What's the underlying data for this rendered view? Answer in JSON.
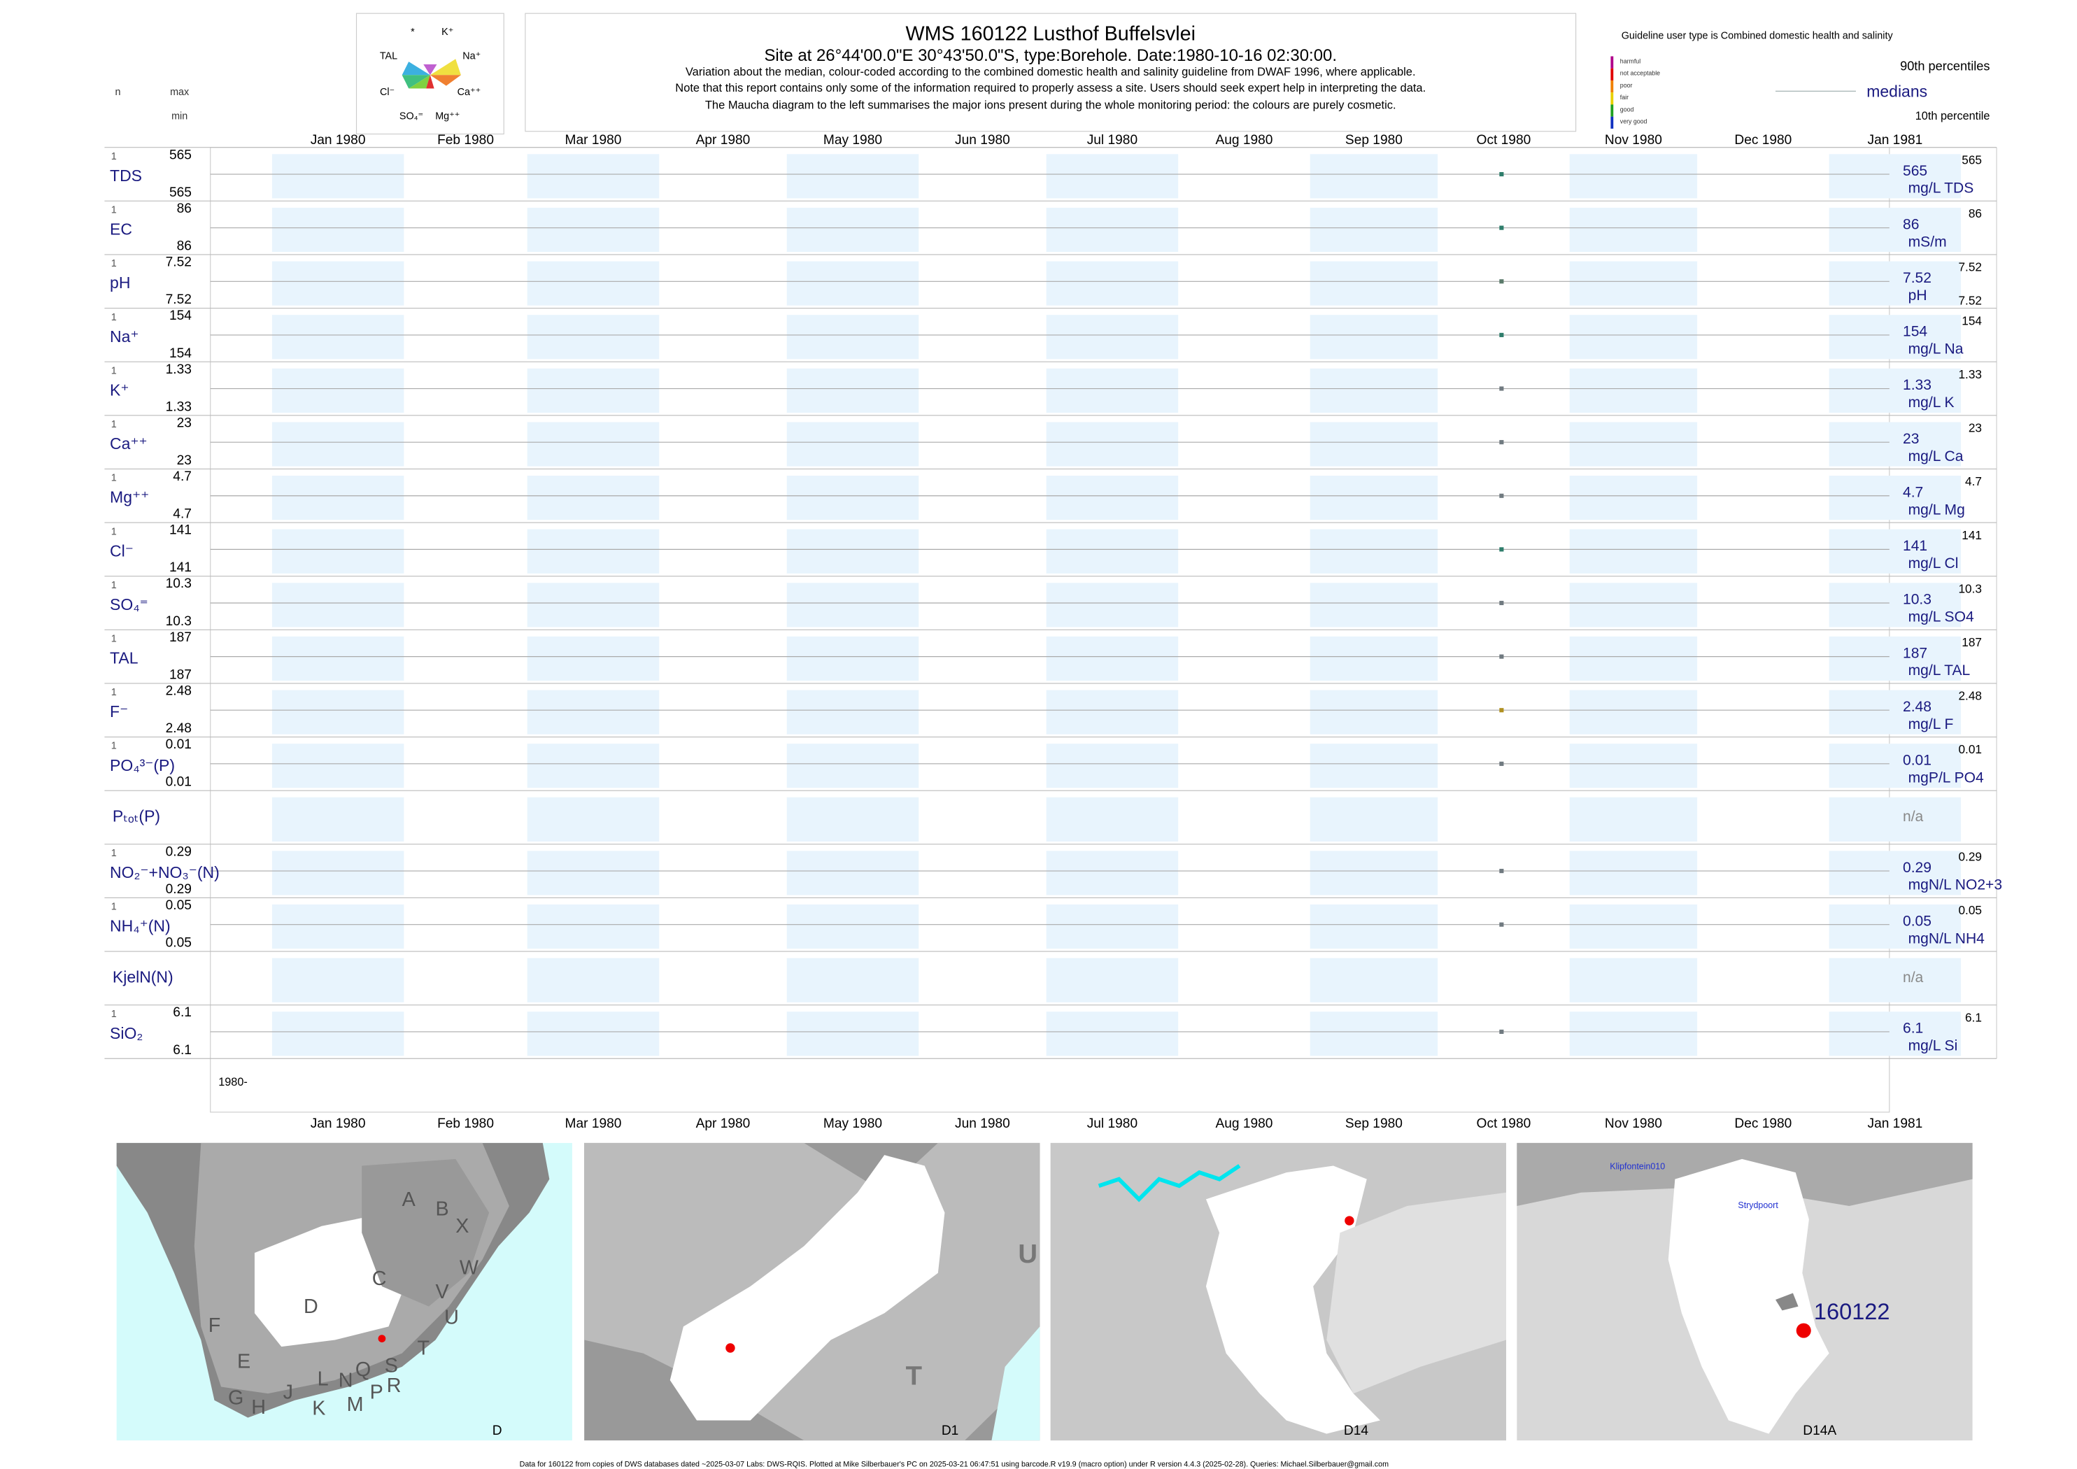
{
  "header": {
    "title": "WMS 160122  Lusthof Buffelsvlei",
    "subtitle": "Site at 26°44'00.0\"E 30°43'50.0\"S, type:Borehole. Date:1980-10-16 02:30:00.",
    "notes": [
      "Variation about the median,  colour-coded according to the combined domestic health and salinity guideline from DWAF 1996, where applicable.",
      "Note that this report contains only some of the information required to properly assess a site. Users should seek expert help in interpreting the data.",
      "The Maucha diagram to the left summarises the major ions present during the whole monitoring period: the colours are purely cosmetic."
    ]
  },
  "maucha": {
    "labels": [
      "*",
      "K⁺",
      "TAL",
      "Na⁺",
      "Cl⁻",
      "Ca⁺⁺",
      "SO₄⁼",
      "Mg⁺⁺"
    ]
  },
  "columns": {
    "n": "n",
    "max": "max",
    "min": "min"
  },
  "guideline": {
    "title": "Guideline user type is Combined domestic health and salinity",
    "classes": [
      {
        "name": "harmful",
        "color": "#b0008a"
      },
      {
        "name": "not acceptable",
        "color": "#e00000"
      },
      {
        "name": "poor",
        "color": "#f08000"
      },
      {
        "name": "fair",
        "color": "#e8d000"
      },
      {
        "name": "good",
        "color": "#20a020"
      },
      {
        "name": "very good",
        "color": "#1030c0"
      }
    ],
    "percentile_labels": [
      "90th percentiles",
      "medians",
      "10th percentile"
    ]
  },
  "months": [
    "Jan 1980",
    "Feb 1980",
    "Mar 1980",
    "Apr 1980",
    "May 1980",
    "Jun 1980",
    "Jul 1980",
    "Aug 1980",
    "Sep 1980",
    "Oct 1980",
    "Nov 1980",
    "Dec 1980",
    "Jan 1981"
  ],
  "rows": [
    {
      "label": "TDS",
      "n": 1,
      "max": 565,
      "min": 565,
      "median": 565,
      "unit": "mg/L TDS",
      "p90": 565,
      "color": "#2e7d6b"
    },
    {
      "label": "EC",
      "n": 1,
      "max": 86,
      "min": 86,
      "median": 86,
      "unit": "mS/m",
      "p90": 86,
      "color": "#2e7d6b"
    },
    {
      "label": "pH",
      "n": 1,
      "max": 7.52,
      "min": 7.52,
      "median": 7.52,
      "unit": "pH",
      "p90": 7.52,
      "p10": 7.52,
      "color": "#5a7a6a"
    },
    {
      "label": "Na⁺",
      "n": 1,
      "max": 154,
      "min": 154,
      "median": 154,
      "unit": "mg/L Na",
      "p90": 154,
      "color": "#2e7d6b"
    },
    {
      "label": "K⁺",
      "n": 1,
      "max": 1.33,
      "min": 1.33,
      "median": 1.33,
      "unit": "mg/L K",
      "p90": 1.33,
      "color": "#707a80"
    },
    {
      "label": "Ca⁺⁺",
      "n": 1,
      "max": 23,
      "min": 23,
      "median": 23,
      "unit": "mg/L Ca",
      "p90": 23,
      "color": "#707a80"
    },
    {
      "label": "Mg⁺⁺",
      "n": 1,
      "max": 4.7,
      "min": 4.7,
      "median": 4.7,
      "unit": "mg/L Mg",
      "p90": 4.7,
      "color": "#707a80"
    },
    {
      "label": "Cl⁻",
      "n": 1,
      "max": 141,
      "min": 141,
      "median": 141,
      "unit": "mg/L Cl",
      "p90": 141,
      "color": "#2e7d6b"
    },
    {
      "label": "SO₄⁼",
      "n": 1,
      "max": 10.3,
      "min": 10.3,
      "median": 10.3,
      "unit": "mg/L SO4",
      "p90": 10.3,
      "color": "#707a80"
    },
    {
      "label": "TAL",
      "n": 1,
      "max": 187,
      "min": 187,
      "median": 187,
      "unit": "mg/L TAL",
      "p90": 187,
      "color": "#707a80"
    },
    {
      "label": "F⁻",
      "n": 1,
      "max": 2.48,
      "min": 2.48,
      "median": 2.48,
      "unit": "mg/L F",
      "p90": 2.48,
      "color": "#b09020"
    },
    {
      "label": "PO₄³⁻(P)",
      "n": 1,
      "max": 0.01,
      "min": 0.01,
      "median": 0.01,
      "unit": "mgP/L PO4",
      "p90": 0.01,
      "color": "#707a80"
    },
    {
      "label": "Pₜₒₜ(P)",
      "status": "n/a"
    },
    {
      "label": "NO₂⁻+NO₃⁻(N)",
      "n": 1,
      "max": 0.29,
      "min": 0.29,
      "median": 0.29,
      "unit": "mgN/L NO2+3",
      "p90": 0.29,
      "color": "#707a80"
    },
    {
      "label": "NH₄⁺(N)",
      "n": 1,
      "max": 0.05,
      "min": 0.05,
      "median": 0.05,
      "unit": "mgN/L NH4",
      "p90": 0.05,
      "color": "#707a80"
    },
    {
      "label": "KjelN(N)",
      "status": "n/a"
    },
    {
      "label": "SiO₂",
      "n": 1,
      "max": 6.1,
      "min": 6.1,
      "median": 6.1,
      "unit": "mg/L Si",
      "p90": 6.1,
      "color": "#707a80"
    }
  ],
  "period_label": "1980-",
  "maps": [
    {
      "caption": "D",
      "labels": [
        "A",
        "B",
        "X",
        "W",
        "C",
        "V",
        "U",
        "D",
        "F",
        "T",
        "E",
        "S",
        "G",
        "H",
        "J",
        "K",
        "L",
        "N",
        "Q",
        "M",
        "P",
        "R"
      ]
    },
    {
      "caption": "D1",
      "labels": [
        "U",
        "T"
      ]
    },
    {
      "caption": "D14",
      "labels": []
    },
    {
      "caption": "D14A",
      "labels": [
        "Klipfontein010",
        "Strydpoort",
        "160122"
      ]
    }
  ],
  "footer": "Data for 160122 from copies of DWS databases dated ~2025-03-07 Labs: DWS-RQIS. Plotted at Mike Silberbauer's PC on 2025-03-21 06:47:51 using barcode.R v19.9 (macro option) under R version 4.4.3 (2025-02-28). Queries: Michael.Silberbauer@gmail.com"
}
